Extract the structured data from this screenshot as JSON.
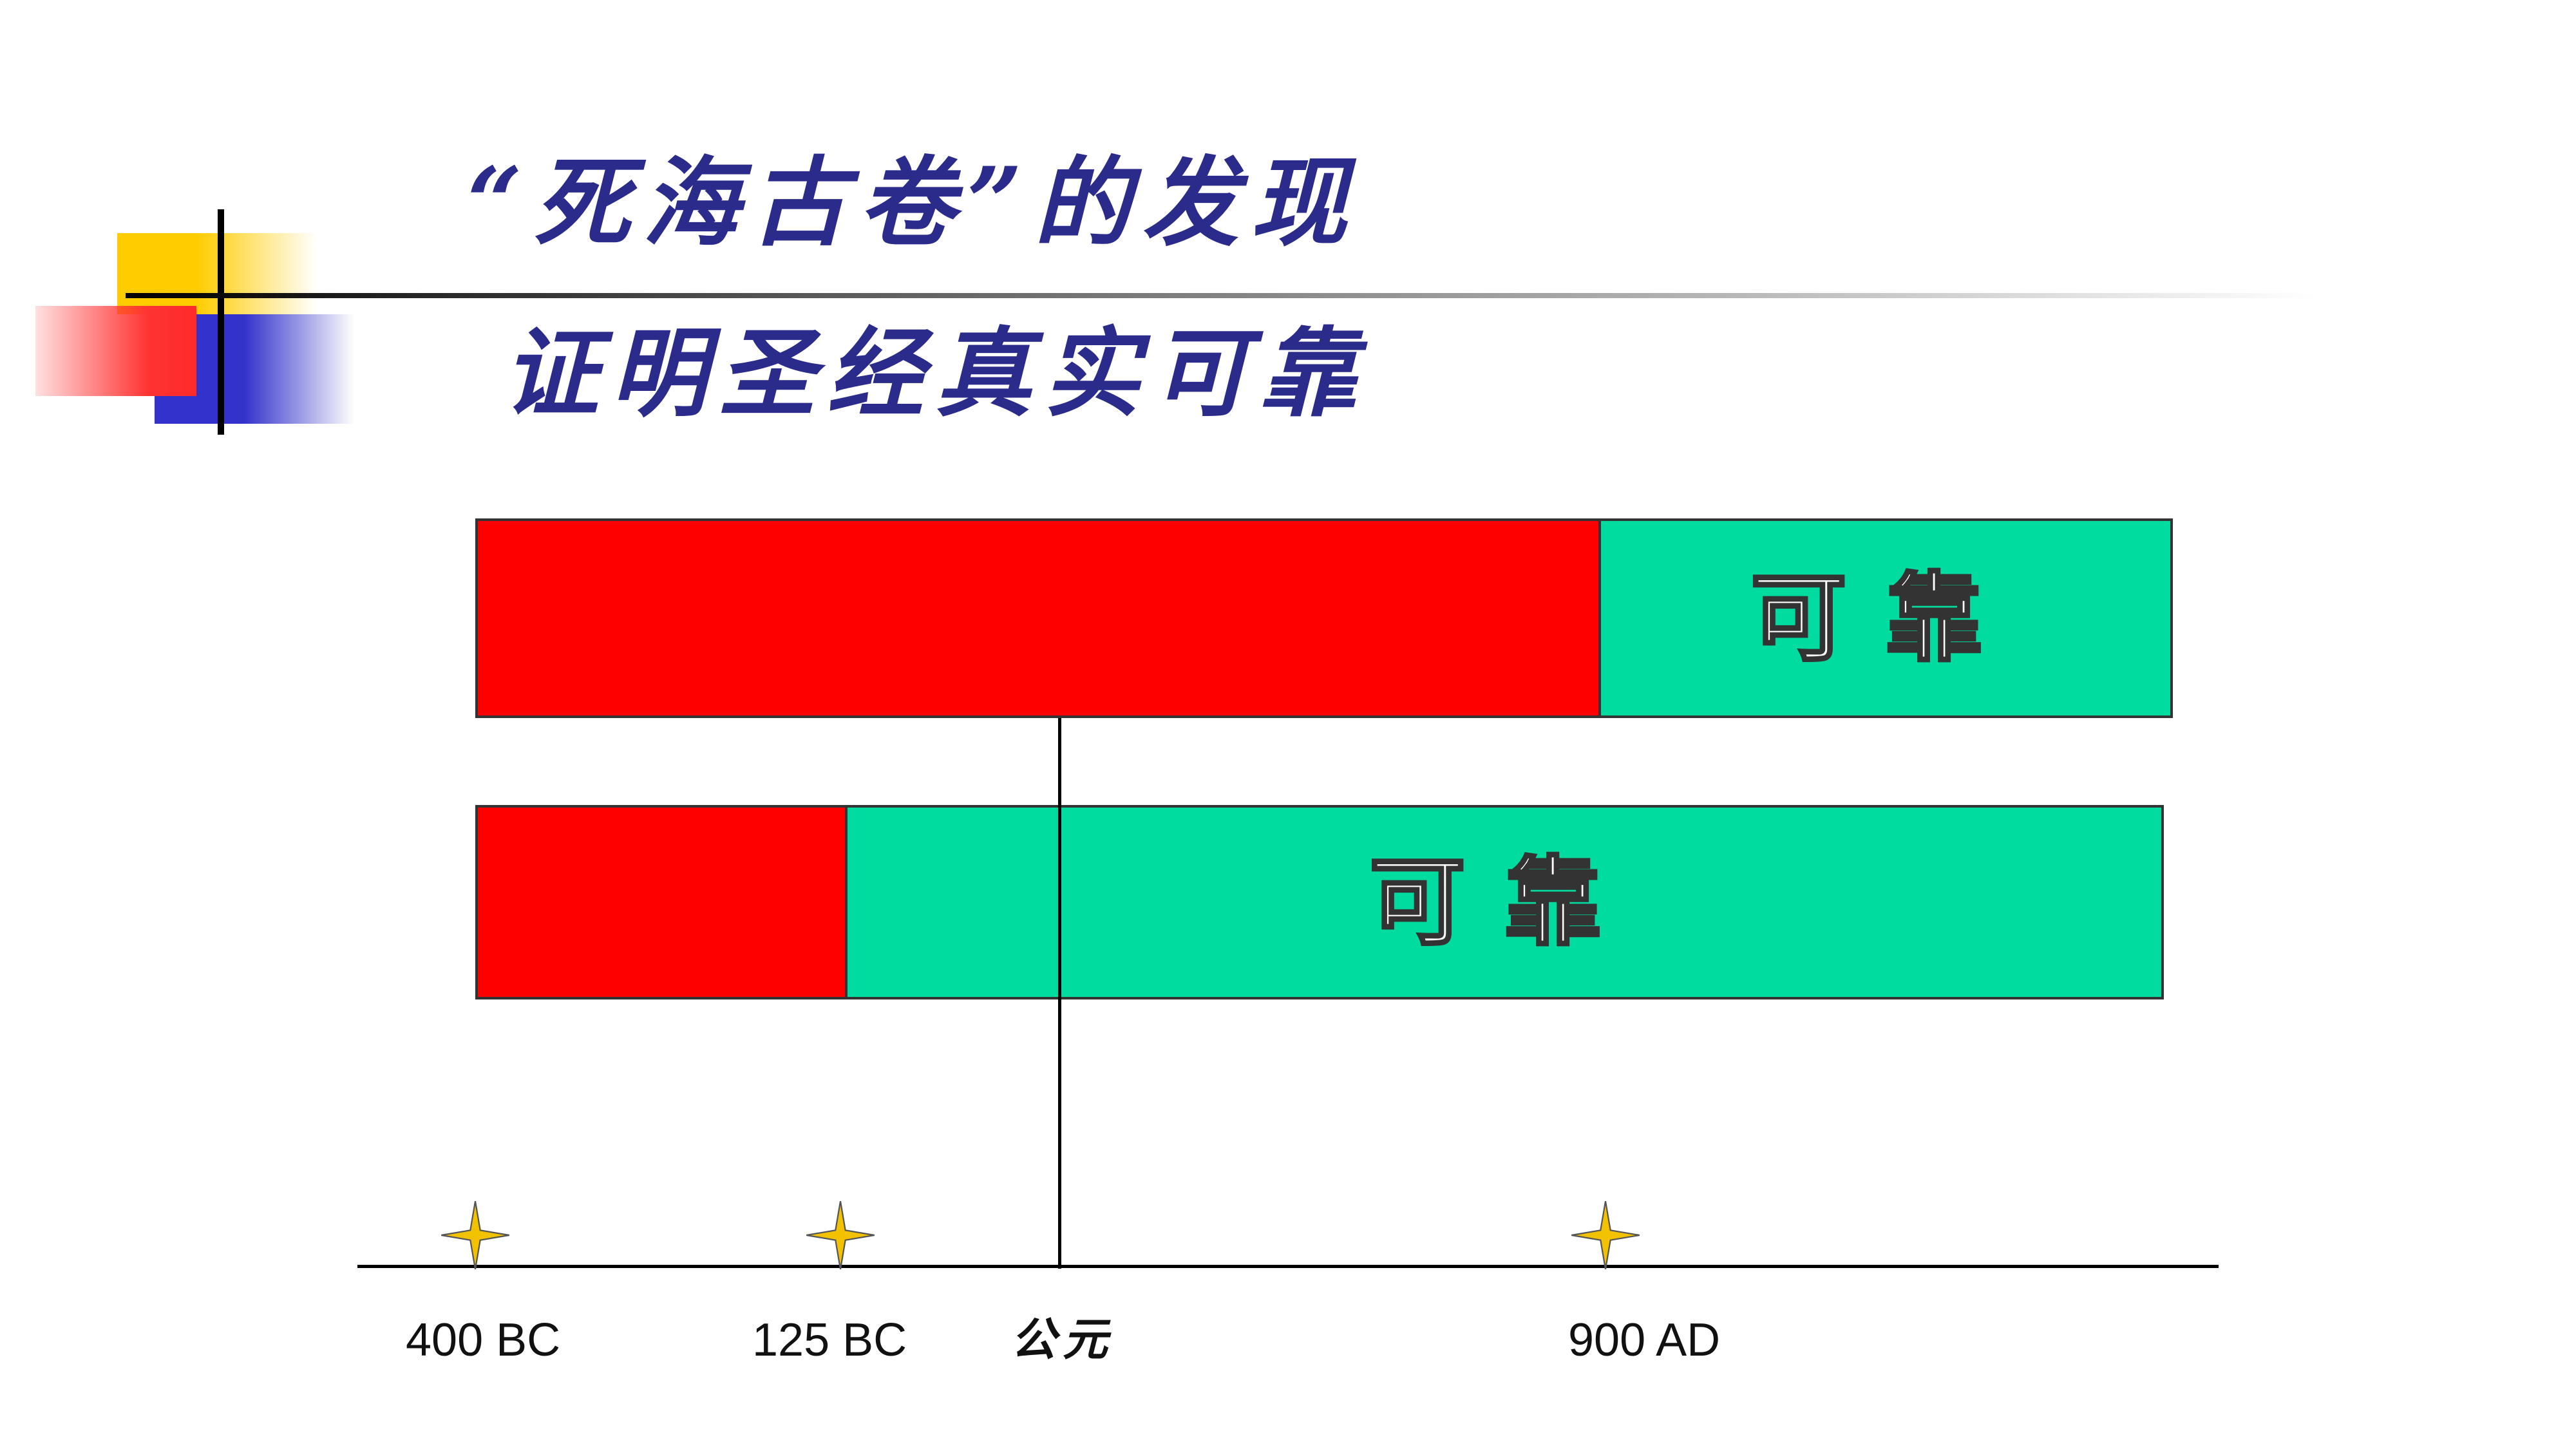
{
  "title": {
    "line1": "“死海古卷”的发现",
    "line2": "证明圣经真实可靠"
  },
  "bars": [
    {
      "label": "可靠",
      "red_fraction": 0.662
    },
    {
      "label": "可靠",
      "red_fraction": 0.218
    }
  ],
  "timeline": {
    "markers": [
      {
        "label": "400 BC",
        "star": true
      },
      {
        "label": "125 BC",
        "star": true
      },
      {
        "label": "公元",
        "star": false
      },
      {
        "label": "900 AD",
        "star": true
      }
    ]
  },
  "colors": {
    "title": "#2b2b8c",
    "red": "#ff0000",
    "green": "#00dc9f",
    "star": "#f2c200"
  },
  "icons": {
    "star": "four-point-star-icon"
  }
}
